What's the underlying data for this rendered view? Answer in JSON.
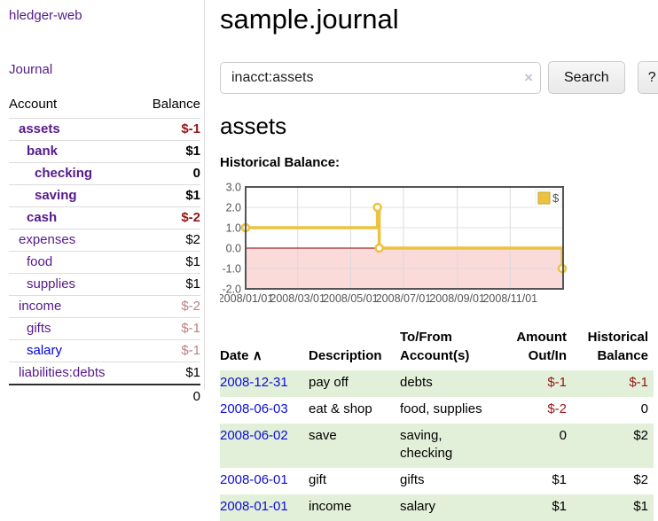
{
  "app": {
    "title": "hledger-web",
    "nav_journal": "Journal"
  },
  "colors": {
    "accent_purple": "#551a8b",
    "link_blue": "#0000e0",
    "neg_strong": "#941616",
    "neg_muted": "#bf7e7e",
    "row_green": "#e2efd9",
    "chart_gold": "#edc240"
  },
  "sidebar": {
    "header": {
      "account": "Account",
      "balance": "Balance"
    },
    "accounts": [
      {
        "name": "assets",
        "depth": 0,
        "bold": true,
        "balance": "$-1",
        "neg": "strong"
      },
      {
        "name": "bank",
        "depth": 1,
        "bold": true,
        "balance": "$1"
      },
      {
        "name": "checking",
        "depth": 2,
        "bold": true,
        "balance": "0"
      },
      {
        "name": "saving",
        "depth": 2,
        "bold": true,
        "balance": "$1"
      },
      {
        "name": "cash",
        "depth": 1,
        "bold": true,
        "balance": "$-2",
        "neg": "strong"
      },
      {
        "name": "expenses",
        "depth": 0,
        "bold": false,
        "balance": "$2"
      },
      {
        "name": "food",
        "depth": 1,
        "bold": false,
        "balance": "$1"
      },
      {
        "name": "supplies",
        "depth": 1,
        "bold": false,
        "balance": "$1"
      },
      {
        "name": "income",
        "depth": 0,
        "bold": false,
        "balance": "$-2",
        "neg": "muted"
      },
      {
        "name": "gifts",
        "depth": 1,
        "bold": false,
        "balance": "$-1",
        "neg": "muted"
      },
      {
        "name": "salary",
        "depth": 1,
        "bold": false,
        "balance": "$-1",
        "neg": "muted",
        "unvisited": true
      },
      {
        "name": "liabilities:debts",
        "depth": 0,
        "bold": false,
        "balance": "$1"
      }
    ],
    "total": "0"
  },
  "header": {
    "title": "sample.journal"
  },
  "search": {
    "value": "inacct:assets",
    "clear_icon": "×",
    "button": "Search",
    "help_button": "?"
  },
  "account_page": {
    "title": "assets",
    "chart_label": "Historical Balance:"
  },
  "chart_data": {
    "type": "line",
    "step": true,
    "title": "Historical Balance",
    "legend": "$",
    "legend_position": "top-right",
    "series": [
      {
        "name": "$",
        "color": "#edc240",
        "points": [
          [
            "2008-01-01",
            1
          ],
          [
            "2008-06-01",
            2
          ],
          [
            "2008-06-03",
            0
          ],
          [
            "2008-12-31",
            -1
          ]
        ]
      }
    ],
    "x_range": [
      "2008-01-01",
      "2008-12-31"
    ],
    "x_ticks": [
      "2008/01/01",
      "2008/03/01",
      "2008/05/01",
      "2008/07/01",
      "2008/09/01",
      "2008/11/01"
    ],
    "y_ticks": [
      "3.0",
      "2.0",
      "1.0",
      "0.0",
      "-1.0",
      "-2.0"
    ],
    "ylim": [
      -2,
      3
    ],
    "grid": true,
    "zero_line_color": "#8b0000",
    "negative_region_color": "#fbdada",
    "grid_color": "#d9d9d9",
    "frame_color": "#545454",
    "tick_label_color": "#545454"
  },
  "register": {
    "headers": {
      "date": "Date",
      "sort_icon": "∧",
      "description": "Description",
      "accounts": "To/From Account(s)",
      "amount": "Amount Out/In",
      "balance": "Historical Balance"
    },
    "rows": [
      {
        "date": "2008-12-31",
        "description": "pay off",
        "accounts": "debts",
        "amount": "$-1",
        "amount_neg": true,
        "balance": "$-1",
        "balance_neg": true
      },
      {
        "date": "2008-06-03",
        "description": "eat & shop",
        "accounts": "food, supplies",
        "amount": "$-2",
        "amount_neg": true,
        "balance": "0",
        "balance_neg": false
      },
      {
        "date": "2008-06-02",
        "description": "save",
        "accounts": "saving, checking",
        "amount": "0",
        "amount_neg": false,
        "balance": "$2",
        "balance_neg": false
      },
      {
        "date": "2008-06-01",
        "description": "gift",
        "accounts": "gifts",
        "amount": "$1",
        "amount_neg": false,
        "balance": "$2",
        "balance_neg": false
      },
      {
        "date": "2008-01-01",
        "description": "income",
        "accounts": "salary",
        "amount": "$1",
        "amount_neg": false,
        "balance": "$1",
        "balance_neg": false
      }
    ]
  }
}
